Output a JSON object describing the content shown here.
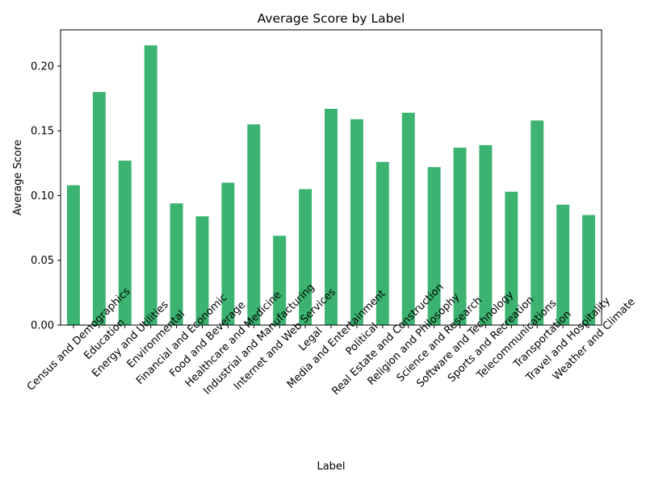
{
  "chart_data": {
    "type": "bar",
    "title": "Average Score by Label",
    "xlabel": "Label",
    "ylabel": "Average Score",
    "categories": [
      "Census and Demographics",
      "Education",
      "Energy and Utilities",
      "Environmental",
      "Financial and Economic",
      "Food and Beverage",
      "Healthcare and Medicine",
      "Industrial and Manufacturing",
      "Internet and Web Services",
      "Legal",
      "Media and Entertainment",
      "Political",
      "Real Estate and Construction",
      "Religion and Philosophy",
      "Science and Research",
      "Software and Technology",
      "Sports and Recreation",
      "Telecommunications",
      "Transportation",
      "Travel and Hospitality",
      "Weather and Climate"
    ],
    "values": [
      0.108,
      0.18,
      0.127,
      0.216,
      0.094,
      0.084,
      0.11,
      0.155,
      0.069,
      0.105,
      0.167,
      0.159,
      0.126,
      0.164,
      0.122,
      0.137,
      0.139,
      0.103,
      0.158,
      0.093,
      0.085
    ],
    "ylim": [
      0,
      0.228
    ],
    "yticks": [
      "0.00",
      "0.05",
      "0.10",
      "0.15",
      "0.20"
    ],
    "ytick_values": [
      0,
      0.05,
      0.1,
      0.15,
      0.2
    ],
    "bar_color": "#3cb371",
    "grid": false,
    "legend": "none"
  }
}
